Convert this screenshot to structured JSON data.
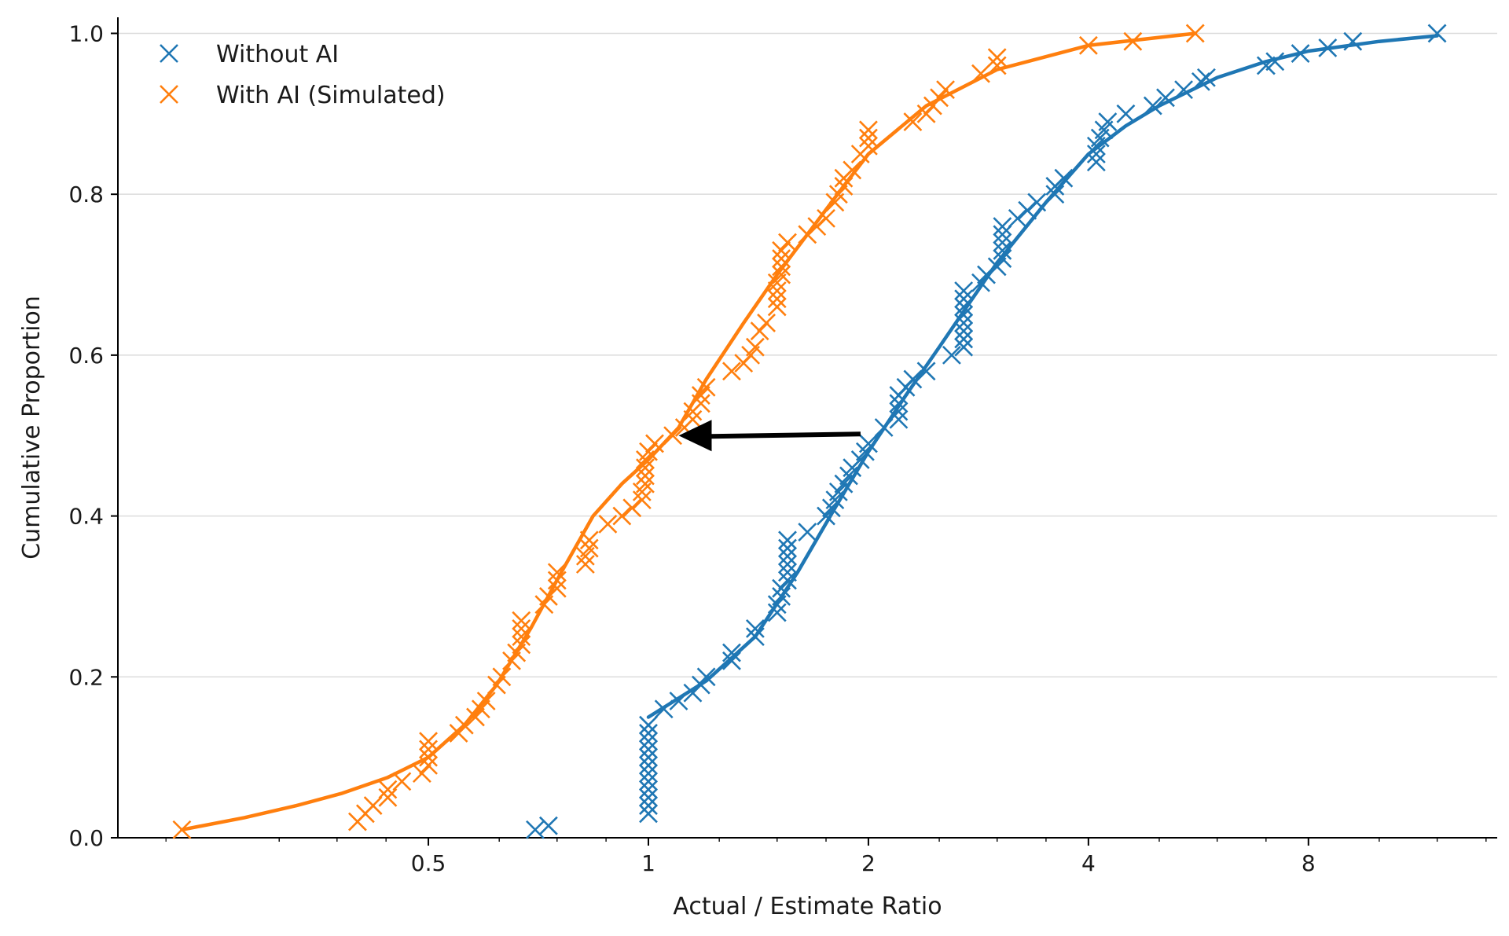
{
  "chart_data": {
    "type": "scatter",
    "xscale": "log2",
    "xlabel": "Actual / Estimate Ratio",
    "ylabel": "Cumulative Proportion",
    "xlim": [
      0.188,
      14.5
    ],
    "ylim": [
      0,
      1.02
    ],
    "xticks": [
      0.5,
      1,
      2,
      4,
      8
    ],
    "xtick_labels": [
      "0.5",
      "1",
      "2",
      "4",
      "8"
    ],
    "yticks": [
      0.0,
      0.2,
      0.4,
      0.6,
      0.8,
      1.0
    ],
    "ytick_labels": [
      "0.0",
      "0.2",
      "0.4",
      "0.6",
      "0.8",
      "1.0"
    ],
    "grid": "horizontal",
    "legend_position": "top-left",
    "annotation": {
      "type": "arrow",
      "from": [
        2.0,
        0.5
      ],
      "to": [
        1.1,
        0.5
      ],
      "color": "#000000"
    },
    "series": [
      {
        "name": "Without AI",
        "color": "#1f77b4",
        "marker": "x",
        "points": [
          [
            0.7,
            0.01
          ],
          [
            0.73,
            0.015
          ],
          [
            1.0,
            0.03
          ],
          [
            1.0,
            0.04
          ],
          [
            1.0,
            0.05
          ],
          [
            1.0,
            0.06
          ],
          [
            1.0,
            0.07
          ],
          [
            1.0,
            0.08
          ],
          [
            1.0,
            0.09
          ],
          [
            1.0,
            0.1
          ],
          [
            1.0,
            0.11
          ],
          [
            1.0,
            0.12
          ],
          [
            1.0,
            0.13
          ],
          [
            1.0,
            0.14
          ],
          [
            1.05,
            0.16
          ],
          [
            1.1,
            0.17
          ],
          [
            1.15,
            0.18
          ],
          [
            1.18,
            0.19
          ],
          [
            1.2,
            0.2
          ],
          [
            1.3,
            0.22
          ],
          [
            1.3,
            0.23
          ],
          [
            1.4,
            0.25
          ],
          [
            1.4,
            0.26
          ],
          [
            1.5,
            0.28
          ],
          [
            1.5,
            0.29
          ],
          [
            1.52,
            0.3
          ],
          [
            1.52,
            0.31
          ],
          [
            1.55,
            0.32
          ],
          [
            1.55,
            0.33
          ],
          [
            1.55,
            0.34
          ],
          [
            1.55,
            0.35
          ],
          [
            1.55,
            0.36
          ],
          [
            1.55,
            0.37
          ],
          [
            1.65,
            0.38
          ],
          [
            1.75,
            0.4
          ],
          [
            1.78,
            0.41
          ],
          [
            1.8,
            0.42
          ],
          [
            1.82,
            0.43
          ],
          [
            1.85,
            0.44
          ],
          [
            1.88,
            0.45
          ],
          [
            1.9,
            0.46
          ],
          [
            1.95,
            0.47
          ],
          [
            1.98,
            0.48
          ],
          [
            2.0,
            0.49
          ],
          [
            2.1,
            0.51
          ],
          [
            2.2,
            0.52
          ],
          [
            2.2,
            0.53
          ],
          [
            2.2,
            0.54
          ],
          [
            2.2,
            0.55
          ],
          [
            2.25,
            0.56
          ],
          [
            2.3,
            0.57
          ],
          [
            2.4,
            0.58
          ],
          [
            2.6,
            0.6
          ],
          [
            2.7,
            0.61
          ],
          [
            2.7,
            0.62
          ],
          [
            2.7,
            0.63
          ],
          [
            2.7,
            0.64
          ],
          [
            2.7,
            0.65
          ],
          [
            2.7,
            0.66
          ],
          [
            2.7,
            0.67
          ],
          [
            2.7,
            0.68
          ],
          [
            2.85,
            0.69
          ],
          [
            2.9,
            0.7
          ],
          [
            3.0,
            0.71
          ],
          [
            3.05,
            0.72
          ],
          [
            3.05,
            0.73
          ],
          [
            3.05,
            0.74
          ],
          [
            3.05,
            0.75
          ],
          [
            3.05,
            0.76
          ],
          [
            3.2,
            0.77
          ],
          [
            3.3,
            0.78
          ],
          [
            3.4,
            0.79
          ],
          [
            3.6,
            0.8
          ],
          [
            3.6,
            0.81
          ],
          [
            3.7,
            0.82
          ],
          [
            4.1,
            0.84
          ],
          [
            4.1,
            0.85
          ],
          [
            4.1,
            0.86
          ],
          [
            4.15,
            0.87
          ],
          [
            4.2,
            0.88
          ],
          [
            4.25,
            0.89
          ],
          [
            4.5,
            0.9
          ],
          [
            4.9,
            0.91
          ],
          [
            5.1,
            0.92
          ],
          [
            5.4,
            0.93
          ],
          [
            5.7,
            0.94
          ],
          [
            5.8,
            0.945
          ],
          [
            7.0,
            0.96
          ],
          [
            7.2,
            0.965
          ],
          [
            7.8,
            0.975
          ],
          [
            8.5,
            0.982
          ],
          [
            9.2,
            0.99
          ],
          [
            12.0,
            1.0
          ]
        ],
        "fit_curve": [
          [
            1.0,
            0.15
          ],
          [
            1.2,
            0.195
          ],
          [
            1.4,
            0.25
          ],
          [
            1.6,
            0.33
          ],
          [
            1.8,
            0.41
          ],
          [
            2.0,
            0.48
          ],
          [
            2.25,
            0.55
          ],
          [
            2.5,
            0.61
          ],
          [
            2.75,
            0.665
          ],
          [
            3.0,
            0.715
          ],
          [
            3.5,
            0.79
          ],
          [
            4.0,
            0.85
          ],
          [
            4.5,
            0.885
          ],
          [
            5.0,
            0.91
          ],
          [
            6.0,
            0.945
          ],
          [
            7.0,
            0.965
          ],
          [
            8.0,
            0.978
          ],
          [
            10.0,
            0.99
          ],
          [
            12.0,
            0.997
          ]
        ]
      },
      {
        "name": "With AI (Simulated)",
        "color": "#ff7f0e",
        "marker": "x",
        "points": [
          [
            0.23,
            0.01
          ],
          [
            0.4,
            0.02
          ],
          [
            0.41,
            0.03
          ],
          [
            0.42,
            0.04
          ],
          [
            0.44,
            0.05
          ],
          [
            0.44,
            0.06
          ],
          [
            0.46,
            0.07
          ],
          [
            0.49,
            0.08
          ],
          [
            0.5,
            0.09
          ],
          [
            0.5,
            0.1
          ],
          [
            0.5,
            0.11
          ],
          [
            0.5,
            0.12
          ],
          [
            0.55,
            0.13
          ],
          [
            0.56,
            0.14
          ],
          [
            0.58,
            0.15
          ],
          [
            0.59,
            0.16
          ],
          [
            0.6,
            0.17
          ],
          [
            0.62,
            0.19
          ],
          [
            0.63,
            0.2
          ],
          [
            0.65,
            0.22
          ],
          [
            0.66,
            0.23
          ],
          [
            0.67,
            0.24
          ],
          [
            0.67,
            0.25
          ],
          [
            0.67,
            0.26
          ],
          [
            0.67,
            0.27
          ],
          [
            0.72,
            0.29
          ],
          [
            0.73,
            0.3
          ],
          [
            0.75,
            0.31
          ],
          [
            0.75,
            0.32
          ],
          [
            0.75,
            0.33
          ],
          [
            0.82,
            0.34
          ],
          [
            0.82,
            0.35
          ],
          [
            0.83,
            0.36
          ],
          [
            0.83,
            0.37
          ],
          [
            0.88,
            0.39
          ],
          [
            0.92,
            0.4
          ],
          [
            0.95,
            0.41
          ],
          [
            0.98,
            0.42
          ],
          [
            0.98,
            0.43
          ],
          [
            0.99,
            0.44
          ],
          [
            0.99,
            0.45
          ],
          [
            0.99,
            0.46
          ],
          [
            0.99,
            0.47
          ],
          [
            1.0,
            0.48
          ],
          [
            1.02,
            0.49
          ],
          [
            1.08,
            0.5
          ],
          [
            1.12,
            0.51
          ],
          [
            1.15,
            0.52
          ],
          [
            1.15,
            0.53
          ],
          [
            1.18,
            0.54
          ],
          [
            1.18,
            0.55
          ],
          [
            1.2,
            0.56
          ],
          [
            1.3,
            0.58
          ],
          [
            1.35,
            0.59
          ],
          [
            1.38,
            0.6
          ],
          [
            1.4,
            0.61
          ],
          [
            1.42,
            0.63
          ],
          [
            1.45,
            0.64
          ],
          [
            1.5,
            0.66
          ],
          [
            1.5,
            0.67
          ],
          [
            1.5,
            0.68
          ],
          [
            1.5,
            0.69
          ],
          [
            1.52,
            0.7
          ],
          [
            1.52,
            0.71
          ],
          [
            1.52,
            0.72
          ],
          [
            1.52,
            0.73
          ],
          [
            1.55,
            0.74
          ],
          [
            1.65,
            0.75
          ],
          [
            1.7,
            0.76
          ],
          [
            1.75,
            0.77
          ],
          [
            1.8,
            0.79
          ],
          [
            1.82,
            0.8
          ],
          [
            1.85,
            0.81
          ],
          [
            1.85,
            0.82
          ],
          [
            1.9,
            0.83
          ],
          [
            1.95,
            0.85
          ],
          [
            2.0,
            0.86
          ],
          [
            2.0,
            0.87
          ],
          [
            2.0,
            0.88
          ],
          [
            2.3,
            0.89
          ],
          [
            2.4,
            0.9
          ],
          [
            2.45,
            0.91
          ],
          [
            2.5,
            0.92
          ],
          [
            2.55,
            0.93
          ],
          [
            2.85,
            0.95
          ],
          [
            3.0,
            0.96
          ],
          [
            3.0,
            0.97
          ],
          [
            4.0,
            0.985
          ],
          [
            4.6,
            0.99
          ],
          [
            5.6,
            1.0
          ]
        ],
        "fit_curve": [
          [
            0.23,
            0.01
          ],
          [
            0.28,
            0.025
          ],
          [
            0.33,
            0.04
          ],
          [
            0.38,
            0.055
          ],
          [
            0.44,
            0.075
          ],
          [
            0.5,
            0.1
          ],
          [
            0.56,
            0.14
          ],
          [
            0.62,
            0.19
          ],
          [
            0.69,
            0.26
          ],
          [
            0.76,
            0.33
          ],
          [
            0.84,
            0.4
          ],
          [
            0.92,
            0.44
          ],
          [
            1.0,
            0.47
          ],
          [
            1.1,
            0.51
          ],
          [
            1.2,
            0.57
          ],
          [
            1.35,
            0.64
          ],
          [
            1.5,
            0.7
          ],
          [
            1.65,
            0.75
          ],
          [
            1.85,
            0.81
          ],
          [
            2.0,
            0.85
          ],
          [
            2.4,
            0.91
          ],
          [
            3.0,
            0.955
          ],
          [
            4.0,
            0.985
          ],
          [
            5.0,
            0.995
          ],
          [
            5.6,
            1.0
          ]
        ]
      }
    ]
  }
}
